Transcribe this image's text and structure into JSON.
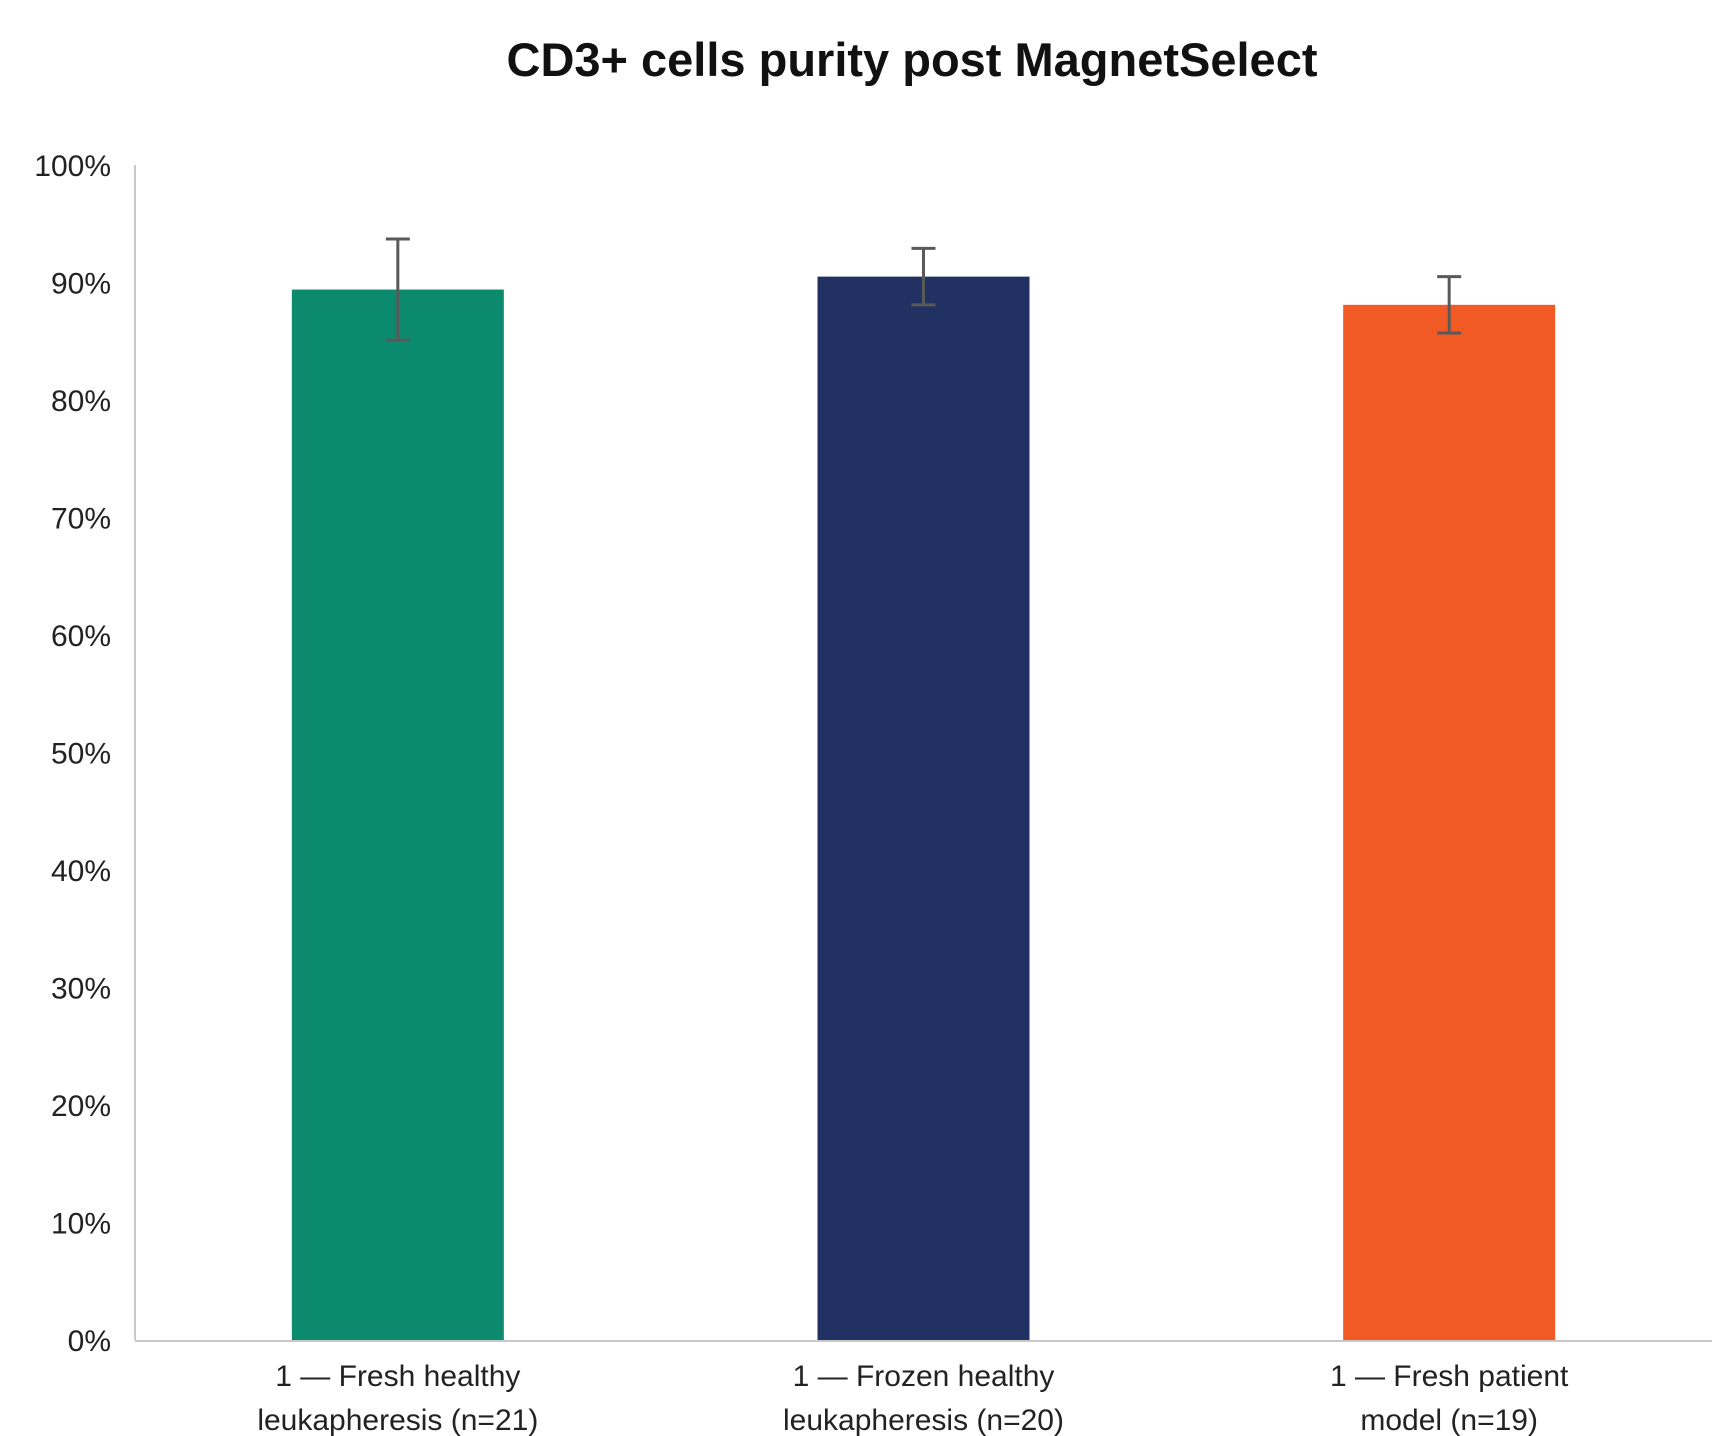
{
  "chart_data": {
    "type": "bar",
    "title": "CD3+ cells purity post MagnetSelect",
    "xlabel": "",
    "ylabel": "",
    "ylim": [
      0,
      100
    ],
    "y_unit": "%",
    "y_ticks": [
      "0%",
      "10%",
      "20%",
      "30%",
      "40%",
      "50%",
      "60%",
      "70%",
      "80%",
      "90%",
      "100%"
    ],
    "grid": false,
    "legend": "none",
    "categories": [
      {
        "line1": "1 — Fresh healthy",
        "line2": "leukapheresis (n=21)"
      },
      {
        "line1": "1 — Frozen healthy",
        "line2": "leukapheresis (n=20)"
      },
      {
        "line1": "1 — Fresh patient",
        "line2": "model (n=19)"
      }
    ],
    "values": [
      89.4,
      90.5,
      88.1
    ],
    "error": [
      4.3,
      2.4,
      2.4
    ],
    "colors": [
      "#0b8a6e",
      "#213262",
      "#f15a24"
    ],
    "error_bar_color": "#595959",
    "axis_color": "#c8c8c8"
  }
}
